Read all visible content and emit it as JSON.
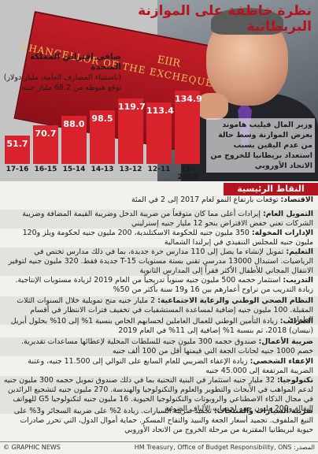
{
  "header": {
    "title": "نظرة خاطفة على الموازنة البريطانية",
    "box_text": "CHANCELLOR OF THE EXCHEQUER",
    "crest_text": "EIIR",
    "caption": "وزير المال فيليب هاموند يعرض الموازنة وسط حالة من عدم اليقين بسبب استعداد بريطانيا للخروج من الاتحاد الأوروبي"
  },
  "chart_data": {
    "type": "bar",
    "title": "صافي اقتراض المملكة المتحدة",
    "subtitle": "(باستثناء المصارف العامة، مليار دولار)",
    "annotation": "توقع هبوطه من 68.2 مليار جنيه",
    "categories": [
      "17-16",
      "16-15",
      "15-14",
      "14-13",
      "13-12",
      "12-11",
      "11-2010"
    ],
    "values": [
      51.7,
      70.7,
      88.0,
      98.5,
      119.7,
      113.4,
      134.9
    ],
    "value_labels": [
      "51.7",
      "70.7",
      "88.0",
      "98.5",
      "119.7",
      "113.4",
      "134.9"
    ],
    "colors": {
      "bar": "#d9232c",
      "highlight": "#b3141e"
    },
    "ylim": [
      0,
      140
    ]
  },
  "section": {
    "title": "النقاط الرئيسية"
  },
  "items": [
    {
      "label": "الاقتصاد:",
      "text": " توقعات بارتفاع النمو لعام 2017 إلى 2 في المئة"
    },
    {
      "label": "التمويل العام:",
      "text": " إيرادات أعلى مما كان متوقعاً من ضريبة الدخل وضريبة القيمة المضافة وضريبة الشركات تعني خفض الاقتراض بنحو 12 مليار جنيه إسترليني"
    },
    {
      "label": "الإدارات المخولة:",
      "text": " 350 مليون جنيه للحكومة الاسكتلندية، 200 مليون جنيه لحكومة ويلز و120 مليون جنيه للمجلس التنفيذي في إيرلندا الشمالية"
    },
    {
      "label": "التعليم:",
      "text": " تمويل لإنشاء ما يصل إلى 110 مدارس حرة جديدة، بما في ذلك مدارس تختص في الرياضيات. استبدال 13000 مدرسي تقني بستة مستويات T-15 جديدة فقط. 320 مليون جنيه لتوفير الانتقال المجاني للأطفال الأكثر فقراً إلى المدارس الثانوية"
    },
    {
      "label": "التدريب:",
      "text": " استثمار حجمه 500 مليون جنيه سنوياً تدريجياً من العام 2019 لزيادة مستويات الإنتاجية. زيادة التدريب من تراوح أعمارهم بين 16 و19 سنة بأكثر من 50%"
    },
    {
      "label": "النظام الصحي الوطني والرعاية الاجتماعية:",
      "text": " 2 مليار جنيه منح تمويلية خلال السنوات الثلاث المقبلة. 100 مليون جنيه إضافية لمساعدة المستشفيات في تخفيف فترات الانتظار في أقسام الطوارئ"
    },
    {
      "label": "الضرائب:",
      "text": " زيادة التأمين الوطني للعمال العاملين لحسابهم الخاص بنسبة 1% إلى 10% بحلول أبريل (نيسان) 2018، ثم بنسبة 1% إضافية إلى 11% في العام 2019"
    },
    {
      "label": "ضريبة الأعمال:",
      "text": " صندوق حجمه 300 مليون جنيه للسلطات المحلية لإعطائها مساعدات تقديرية. خصم 1000 جنيه لحانات الجعة التي قيمتها أقل من 100 ألف جنيه"
    },
    {
      "label": "الإعفاء الشخصي:",
      "text": " زيادة الإعفاء الضريبي للعام السابع على التوالي إلى 11.500 جنيه، وعتبة الضريبة المرتفعة إلى 45.000 جنيه"
    },
    {
      "label": "تكنولوجيا:",
      "text": " 32 مليار جنيه استثمار في البنية التحتية بما في ذلك صندوق تمويل حجمه 300 مليون جنيه لدعم المواهب في الأبحاث والتطوير والعلوم والتكنولوجيا والهندسة. 270 مليون جنيه لتشجيع الرائدين في مجال الذكاء الاصطناعي والروبوتات والتكنولوجيا الحيوية. 16 مليون جنيه لتكنولوجيا G5 للهواتف النقالة و200 مليون جنيه لخدمات الألياف الضوئية"
    },
    {
      "label": "ضريبة السيارات والمنتجات:",
      "text": " تجميد ضريبة السيارات. زيادة 2% على ضريبة السجائر و3% على التبغ الملفوف. تجميد أسعار الجعة والنبيذ والتفاح المسكر. حماية أموال الدول، التي تحرر صادرات حيوية لبريطانيا المقتربة من مرحلة الخروج من الاتحاد الأوروبي"
    }
  ],
  "footer": {
    "logo": "© GRAPHIC NEWS",
    "source": "المصدر: HM Treasury, Office of Budget Responsibility, ONS"
  }
}
